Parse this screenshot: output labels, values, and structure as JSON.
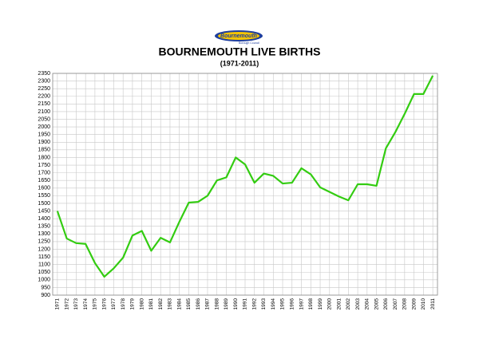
{
  "chart_data": {
    "type": "line",
    "logo": {
      "name": "Bournemouth",
      "tagline": "Borough Council"
    },
    "title": "BOURNEMOUTH LIVE BIRTHS",
    "subtitle": "(1971-2011)",
    "categories": [
      "1971",
      "1972",
      "1973",
      "1974",
      "1975",
      "1976",
      "1977",
      "1978",
      "1979",
      "1980",
      "1981",
      "1982",
      "1983",
      "1984",
      "1985",
      "1986",
      "1987",
      "1988",
      "1989",
      "1990",
      "1991",
      "1992",
      "1993",
      "1994",
      "1995",
      "1996",
      "1997",
      "1998",
      "1999",
      "2000",
      "2001",
      "2002",
      "2003",
      "2004",
      "2005",
      "2006",
      "2007",
      "2008",
      "2009",
      "2010",
      "2011"
    ],
    "series": [
      {
        "color": "#33cc11",
        "values": [
          1450,
          1270,
          1240,
          1235,
          1110,
          1020,
          1075,
          1145,
          1290,
          1320,
          1190,
          1275,
          1245,
          1380,
          1505,
          1510,
          1550,
          1650,
          1670,
          1800,
          1755,
          1635,
          1695,
          1680,
          1630,
          1635,
          1730,
          1690,
          1605,
          1575,
          1545,
          1520,
          1625,
          1625,
          1615,
          1860,
          1965,
          2085,
          2215,
          2215,
          2335
        ]
      }
    ],
    "ylim": [
      900,
      2350
    ],
    "yticks": [
      900,
      950,
      1000,
      1050,
      1100,
      1150,
      1200,
      1250,
      1300,
      1350,
      1400,
      1450,
      1500,
      1550,
      1600,
      1650,
      1700,
      1750,
      1800,
      1850,
      1900,
      1950,
      2000,
      2050,
      2100,
      2150,
      2200,
      2250,
      2300,
      2350
    ],
    "grid": true
  }
}
